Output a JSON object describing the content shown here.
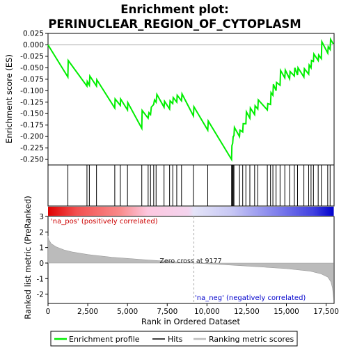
{
  "chart_data": {
    "type": "line",
    "title_line1": "Enrichment plot:",
    "title_line2": "PERINUCLEAR_REGION_OF_CYTOPLASM",
    "es_panel": {
      "ylabel": "Enrichment score (ES)",
      "ylim": [
        -0.262,
        0.025
      ],
      "yticks": [
        0.025,
        0.0,
        -0.025,
        -0.05,
        -0.075,
        -0.1,
        -0.125,
        -0.15,
        -0.175,
        -0.2,
        -0.225,
        -0.25
      ],
      "ytick_labels": [
        "0.025",
        "0.000",
        "-0.025",
        "-0.050",
        "-0.075",
        "-0.100",
        "-0.125",
        "-0.150",
        "-0.175",
        "-0.200",
        "-0.225",
        "-0.250"
      ],
      "line_color": "#00ee00",
      "points": [
        [
          0,
          0.0
        ],
        [
          1250,
          -0.07
        ],
        [
          1270,
          -0.034
        ],
        [
          2450,
          -0.09
        ],
        [
          2470,
          -0.08
        ],
        [
          2600,
          -0.088
        ],
        [
          2630,
          -0.068
        ],
        [
          3050,
          -0.09
        ],
        [
          3070,
          -0.076
        ],
        [
          4200,
          -0.138
        ],
        [
          4220,
          -0.118
        ],
        [
          4550,
          -0.132
        ],
        [
          4570,
          -0.118
        ],
        [
          5000,
          -0.142
        ],
        [
          5020,
          -0.126
        ],
        [
          5900,
          -0.182
        ],
        [
          5920,
          -0.143
        ],
        [
          6300,
          -0.16
        ],
        [
          6350,
          -0.148
        ],
        [
          6450,
          -0.152
        ],
        [
          6500,
          -0.136
        ],
        [
          6650,
          -0.13
        ],
        [
          6700,
          -0.12
        ],
        [
          6800,
          -0.125
        ],
        [
          6850,
          -0.108
        ],
        [
          7300,
          -0.136
        ],
        [
          7330,
          -0.123
        ],
        [
          7650,
          -0.14
        ],
        [
          7680,
          -0.122
        ],
        [
          7850,
          -0.128
        ],
        [
          7880,
          -0.115
        ],
        [
          8100,
          -0.125
        ],
        [
          8130,
          -0.11
        ],
        [
          8400,
          -0.122
        ],
        [
          8430,
          -0.107
        ],
        [
          9150,
          -0.155
        ],
        [
          9180,
          -0.135
        ],
        [
          10050,
          -0.186
        ],
        [
          10080,
          -0.166
        ],
        [
          11550,
          -0.25
        ],
        [
          11570,
          -0.22
        ],
        [
          11620,
          -0.215
        ],
        [
          11650,
          -0.2
        ],
        [
          11700,
          -0.198
        ],
        [
          11730,
          -0.18
        ],
        [
          12050,
          -0.2
        ],
        [
          12080,
          -0.186
        ],
        [
          12250,
          -0.19
        ],
        [
          12280,
          -0.172
        ],
        [
          12450,
          -0.172
        ],
        [
          12480,
          -0.146
        ],
        [
          12700,
          -0.16
        ],
        [
          12730,
          -0.138
        ],
        [
          13000,
          -0.152
        ],
        [
          13030,
          -0.133
        ],
        [
          13200,
          -0.14
        ],
        [
          13230,
          -0.12
        ],
        [
          13800,
          -0.142
        ],
        [
          13830,
          -0.128
        ],
        [
          14000,
          -0.13
        ],
        [
          14030,
          -0.104
        ],
        [
          14150,
          -0.11
        ],
        [
          14180,
          -0.086
        ],
        [
          14350,
          -0.1
        ],
        [
          14380,
          -0.082
        ],
        [
          14600,
          -0.088
        ],
        [
          14630,
          -0.056
        ],
        [
          14900,
          -0.072
        ],
        [
          14930,
          -0.055
        ],
        [
          15200,
          -0.074
        ],
        [
          15230,
          -0.058
        ],
        [
          15500,
          -0.068
        ],
        [
          15530,
          -0.05
        ],
        [
          15700,
          -0.066
        ],
        [
          15730,
          -0.05
        ],
        [
          16100,
          -0.07
        ],
        [
          16130,
          -0.052
        ],
        [
          16400,
          -0.064
        ],
        [
          16430,
          -0.044
        ],
        [
          16550,
          -0.05
        ],
        [
          16580,
          -0.034
        ],
        [
          16700,
          -0.036
        ],
        [
          16730,
          -0.02
        ],
        [
          17000,
          -0.034
        ],
        [
          17030,
          -0.022
        ],
        [
          17200,
          -0.03
        ],
        [
          17230,
          0.007
        ],
        [
          17600,
          -0.018
        ],
        [
          17630,
          -0.004
        ],
        [
          17750,
          -0.01
        ],
        [
          17780,
          0.012
        ],
        [
          17950,
          0.002
        ]
      ]
    },
    "hits": [
      1250,
      2450,
      2600,
      3050,
      4200,
      4550,
      5000,
      5900,
      6300,
      6450,
      6650,
      6800,
      7300,
      7650,
      7850,
      8100,
      8400,
      9150,
      10050,
      11550,
      11600,
      11620,
      11650,
      11700,
      12050,
      12250,
      12450,
      12700,
      13000,
      13200,
      13800,
      14000,
      14150,
      14350,
      14600,
      14900,
      15200,
      15500,
      15700,
      16100,
      16400,
      16550,
      16700,
      17000,
      17200,
      17600,
      17750
    ],
    "metric_panel": {
      "ylabel": "Ranked list metric (PreRanked)",
      "xlabel": "Rank in Ordered Dataset",
      "ylim": [
        -2.6,
        3.0
      ],
      "yticks": [
        3,
        2,
        1,
        0,
        -1,
        -2
      ],
      "xlim": [
        0,
        18000
      ],
      "xticks": [
        0,
        2500,
        5000,
        7500,
        10000,
        12500,
        15000,
        17500
      ],
      "xtick_labels": [
        "0",
        "2,500",
        "5,000",
        "7,500",
        "10,000",
        "12,500",
        "15,000",
        "17,500"
      ],
      "fill_color": "#bbbbbb",
      "curve": [
        [
          0,
          1.75
        ],
        [
          50,
          1.5
        ],
        [
          200,
          1.25
        ],
        [
          500,
          1.05
        ],
        [
          1000,
          0.85
        ],
        [
          1500,
          0.72
        ],
        [
          2500,
          0.55
        ],
        [
          4000,
          0.38
        ],
        [
          6000,
          0.22
        ],
        [
          8000,
          0.08
        ],
        [
          9177,
          0.0
        ],
        [
          11000,
          -0.1
        ],
        [
          13000,
          -0.22
        ],
        [
          15000,
          -0.36
        ],
        [
          16500,
          -0.52
        ],
        [
          17200,
          -0.7
        ],
        [
          17600,
          -0.9
        ],
        [
          17800,
          -1.2
        ],
        [
          17900,
          -1.6
        ],
        [
          17950,
          -2.1
        ],
        [
          17980,
          -2.5
        ]
      ],
      "zero_cross_label": "Zero cross at 9177",
      "zero_cross": 9177,
      "pos_label": "'na_pos' (positively correlated)",
      "neg_label": "'na_neg' (negatively correlated)",
      "pos_color": "#cc0000",
      "neg_color": "#0000cc"
    },
    "legend": [
      {
        "label": "Enrichment profile",
        "color": "#00ee00"
      },
      {
        "label": "Hits",
        "color": "#000000"
      },
      {
        "label": "Ranking metric scores",
        "color": "#bbbbbb"
      }
    ]
  }
}
